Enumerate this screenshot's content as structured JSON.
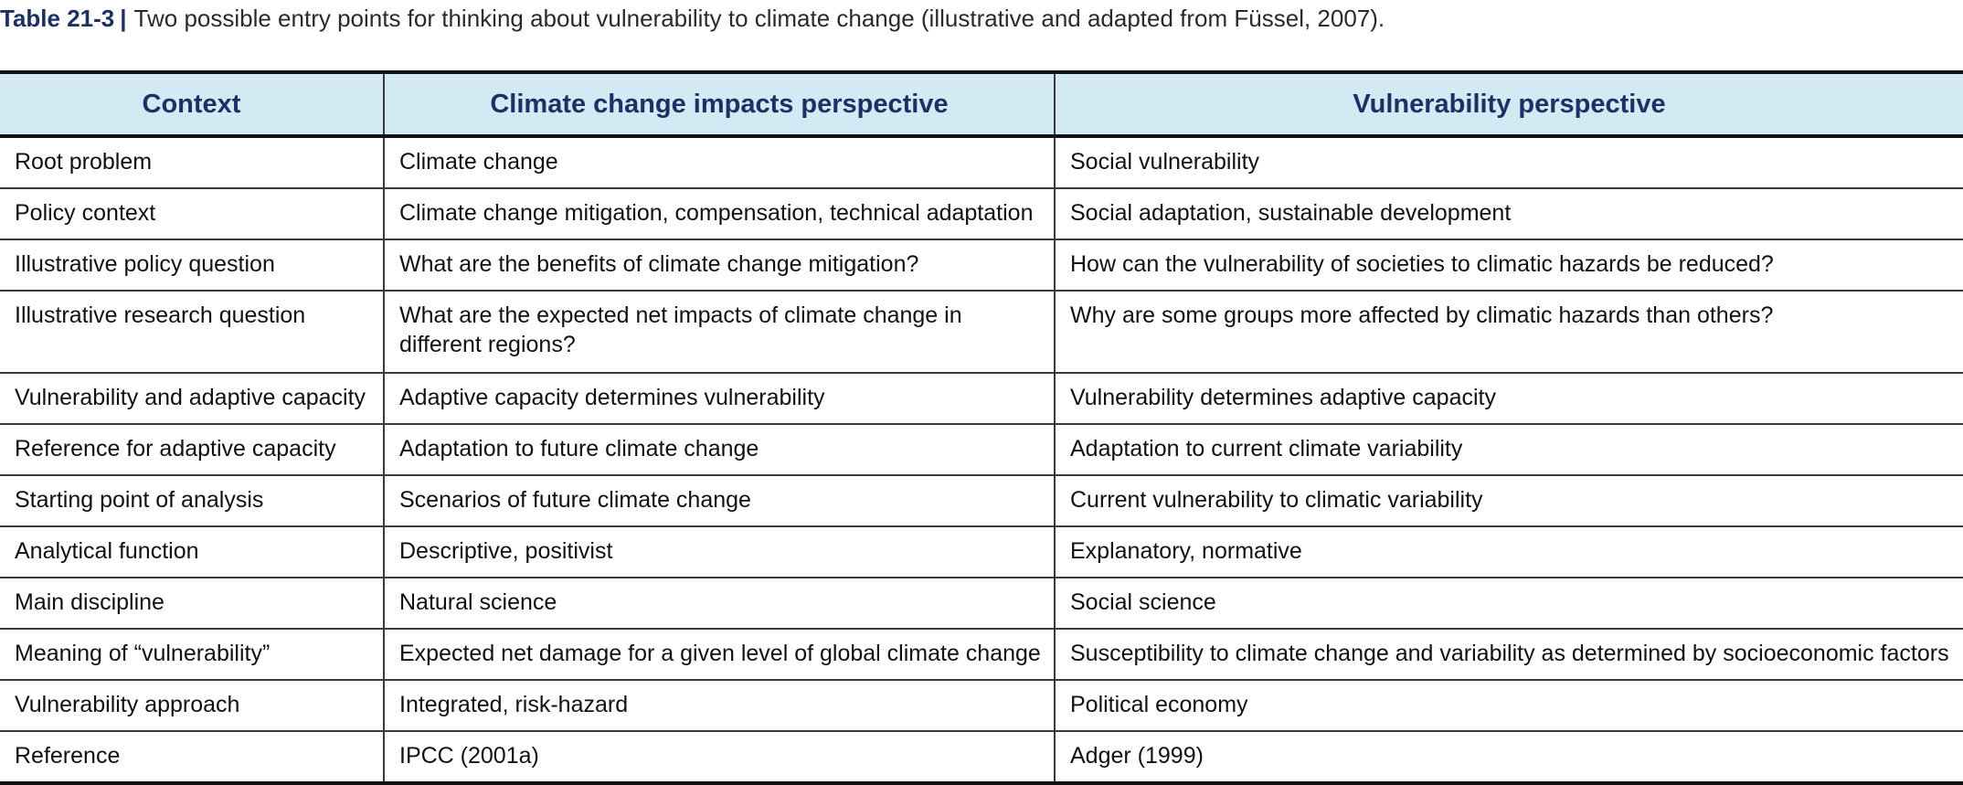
{
  "caption": {
    "label": "Table 21-3",
    "separator": "|",
    "text": "Two possible entry points for thinking about vulnerability to climate change (illustrative and adapted from Füssel, 2007)."
  },
  "table": {
    "headers": [
      "Context",
      "Climate change impacts perspective",
      "Vulnerability perspective"
    ],
    "rows": [
      [
        "Root problem",
        "Climate change",
        "Social vulnerability"
      ],
      [
        "Policy context",
        "Climate change mitigation, compensation, technical adaptation",
        "Social adaptation, sustainable development"
      ],
      [
        "Illustrative policy question",
        "What are the benefits of climate change mitigation?",
        "How can the vulnerability of societies to climatic hazards be reduced?"
      ],
      [
        "Illustrative research question",
        "What are the expected net impacts of climate change in different regions?",
        "Why are some groups more affected by climatic hazards than others?"
      ],
      [
        "Vulnerability and adaptive capacity",
        "Adaptive capacity determines vulnerability",
        "Vulnerability determines adaptive capacity"
      ],
      [
        "Reference for adaptive capacity",
        "Adaptation to future climate change",
        "Adaptation to current climate variability"
      ],
      [
        "Starting point of analysis",
        "Scenarios of future climate change",
        "Current vulnerability to climatic variability"
      ],
      [
        "Analytical function",
        "Descriptive, positivist",
        "Explanatory, normative"
      ],
      [
        "Main discipline",
        "Natural science",
        "Social science"
      ],
      [
        "Meaning of “vulnerability”",
        "Expected net damage for a given level of global climate change",
        "Susceptibility to climate change and variability as determined by socioeconomic factors"
      ],
      [
        "Vulnerability approach",
        "Integrated, risk-hazard",
        "Political economy"
      ],
      [
        "Reference",
        "IPCC (2001a)",
        "Adger (1999)"
      ]
    ]
  },
  "colors": {
    "header_bg": "#d3e9f4",
    "header_text": "#1c3163",
    "caption_label": "#1c3163"
  }
}
